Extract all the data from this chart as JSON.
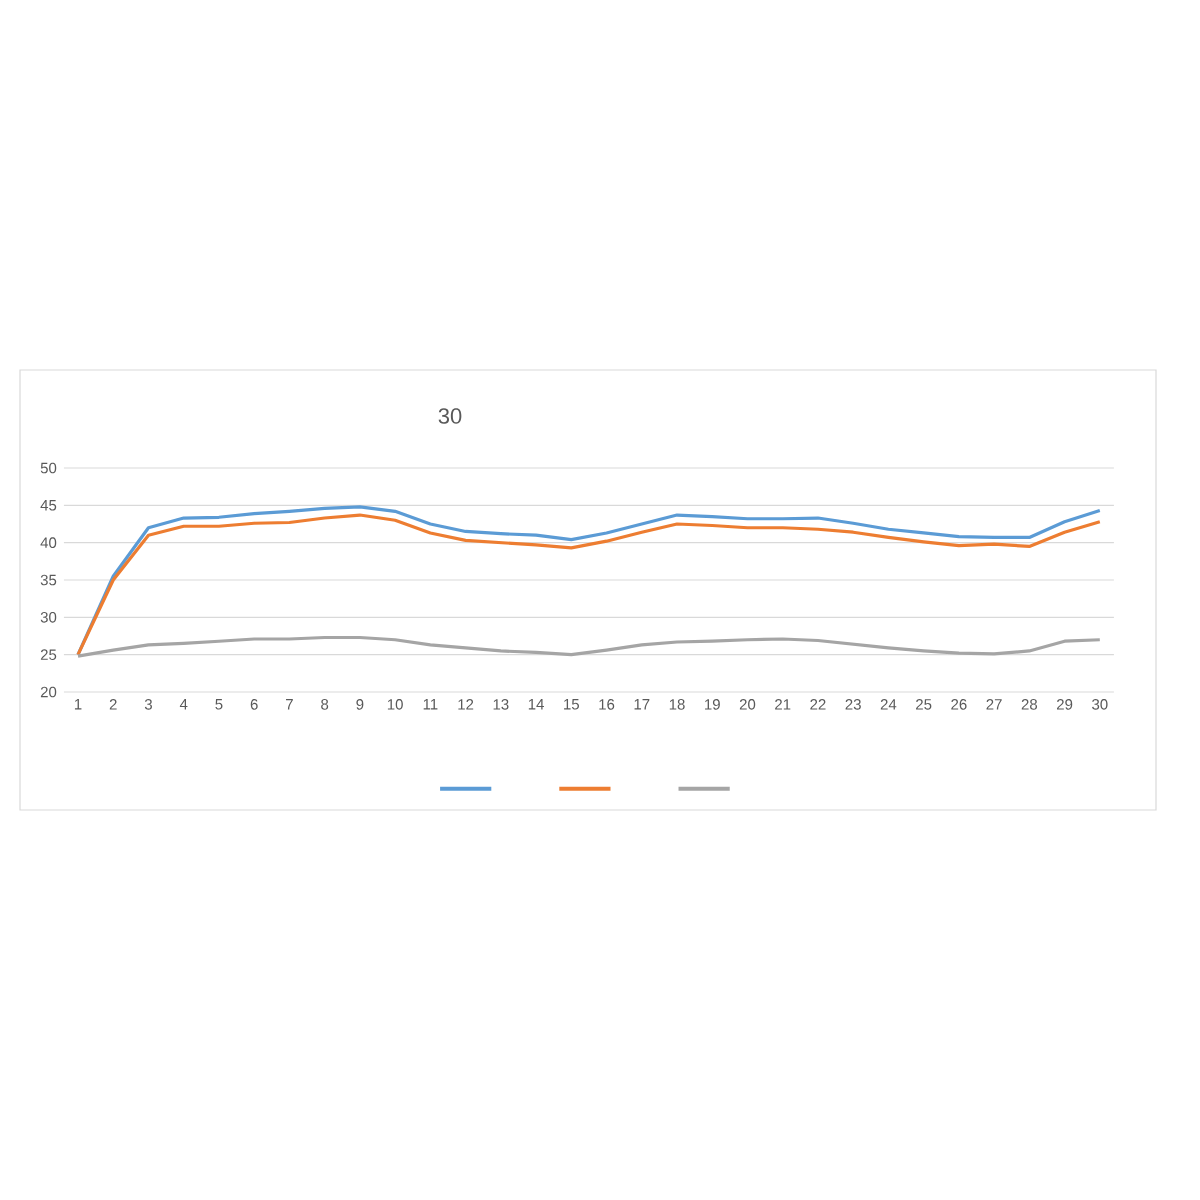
{
  "chart_data": {
    "type": "line",
    "title": "30",
    "categories": [
      "1",
      "2",
      "3",
      "4",
      "5",
      "6",
      "7",
      "8",
      "9",
      "10",
      "11",
      "12",
      "13",
      "14",
      "15",
      "16",
      "17",
      "18",
      "19",
      "20",
      "21",
      "22",
      "23",
      "24",
      "25",
      "26",
      "27",
      "28",
      "29",
      "30"
    ],
    "series": [
      {
        "color": "#5b9bd5",
        "values": [
          25,
          35.5,
          42,
          43.3,
          43.4,
          43.9,
          44.2,
          44.6,
          44.8,
          44.2,
          42.5,
          41.5,
          41.2,
          41,
          40.4,
          41.3,
          42.5,
          43.7,
          43.5,
          43.2,
          43.2,
          43.3,
          42.6,
          41.8,
          41.3,
          40.8,
          40.7,
          40.7,
          42.8,
          44.3
        ]
      },
      {
        "color": "#ed7d31",
        "values": [
          25,
          35,
          41,
          42.2,
          42.2,
          42.6,
          42.7,
          43.3,
          43.7,
          43,
          41.3,
          40.3,
          40,
          39.7,
          39.3,
          40.2,
          41.4,
          42.5,
          42.3,
          42,
          42,
          41.8,
          41.4,
          40.7,
          40.1,
          39.6,
          39.8,
          39.5,
          41.4,
          42.8
        ]
      },
      {
        "color": "#a5a5a5",
        "values": [
          24.8,
          25.6,
          26.3,
          26.5,
          26.8,
          27.1,
          27.1,
          27.3,
          27.3,
          27,
          26.3,
          25.9,
          25.5,
          25.3,
          25,
          25.6,
          26.3,
          26.7,
          26.8,
          27,
          27.1,
          26.9,
          26.4,
          25.9,
          25.5,
          25.2,
          25.1,
          25.5,
          26.8,
          27
        ]
      }
    ],
    "ylim": [
      20,
      50
    ],
    "yticks": [
      20,
      25,
      30,
      35,
      40,
      45,
      50
    ],
    "grid": "y",
    "marker": "none",
    "line_style": "solid"
  }
}
